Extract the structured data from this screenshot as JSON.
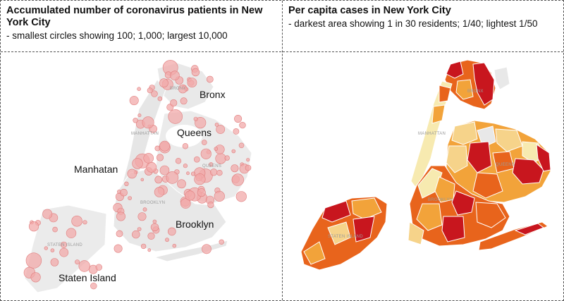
{
  "left_panel": {
    "title": "Accumulated number of coronavirus patients in New York City",
    "subtitle": "- smallest circles showing 100; 1,000; largest 10,000",
    "labels": {
      "bronx": "Bronx",
      "queens": "Queens",
      "manhatan": "Manhatan",
      "brooklyn": "Brooklyn",
      "staten": "Staten  Island"
    },
    "map_labels": {
      "bronx": "BRONX",
      "manhattan": "MANHATTAN",
      "queens": "QUEENS",
      "brooklyn": "BROOKLYN",
      "staten": "STATEN ISLAND"
    }
  },
  "right_panel": {
    "title": "Per capita cases in New York City",
    "subtitle": "- darkest area showing 1 in 30 residents; 1/40; lightest 1/50",
    "map_labels": {
      "bronx": "BRONX",
      "manhattan": "MANHATTAN",
      "queens": "QUEENS",
      "brooklyn": "BROOKLYN",
      "staten": "STATEN ISLAND"
    }
  },
  "colors": {
    "land": "#e9e9e9",
    "circle_fill": "#f1a9a9",
    "circle_stroke": "#e07e7e",
    "darkest": "#c8161e",
    "dark": "#e8641c",
    "medium": "#f2a33a",
    "light": "#f6d38a",
    "lightest": "#f7eab0"
  }
}
